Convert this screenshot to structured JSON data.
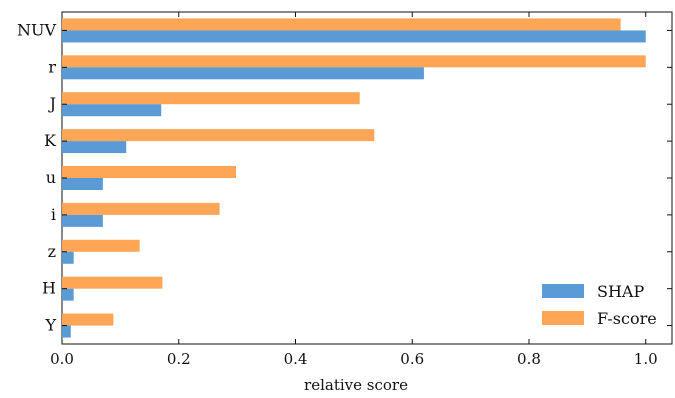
{
  "chart_data": {
    "type": "bar",
    "orientation": "horizontal",
    "categories": [
      "NUV",
      "r",
      "J",
      "K",
      "u",
      "i",
      "z",
      "H",
      "Y"
    ],
    "series": [
      {
        "name": "SHAP",
        "color": "#5b9bd5",
        "values": [
          1.0,
          0.62,
          0.17,
          0.11,
          0.07,
          0.07,
          0.02,
          0.02,
          0.015
        ]
      },
      {
        "name": "F-score",
        "color": "#ffa556",
        "values": [
          0.957,
          1.0,
          0.51,
          0.535,
          0.298,
          0.27,
          0.133,
          0.172,
          0.088
        ]
      }
    ],
    "xlabel": "relative score",
    "ylabel": "",
    "xlim": [
      0.0,
      1.045
    ],
    "xticks": [
      0.0,
      0.2,
      0.4,
      0.6,
      0.8,
      1.0
    ],
    "xtick_labels": [
      "0.0",
      "0.2",
      "0.4",
      "0.6",
      "0.8",
      "1.0"
    ],
    "grid": false,
    "legend": {
      "position": "lower-right",
      "entries": [
        "SHAP",
        "F-score"
      ]
    }
  }
}
